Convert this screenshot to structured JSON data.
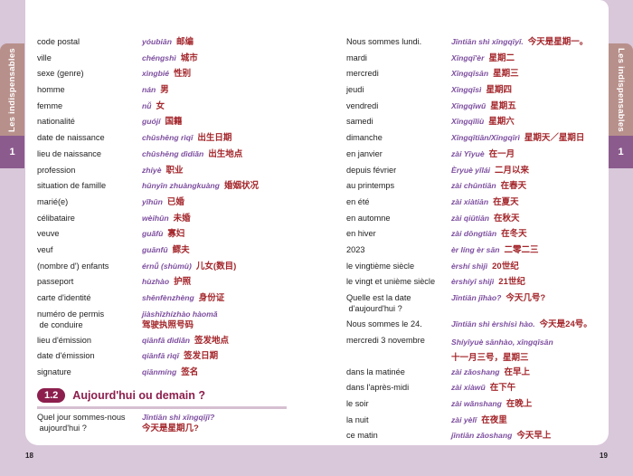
{
  "tab": {
    "label": "Les indispensables",
    "chapter": "1"
  },
  "left": {
    "rows": [
      {
        "fr": "code postal",
        "py": "yóubiān",
        "hz": "邮编"
      },
      {
        "fr": "ville",
        "py": "chéngshì",
        "hz": "城市"
      },
      {
        "fr": "sexe (genre)",
        "py": "xìngbié",
        "hz": "性别"
      },
      {
        "fr": "homme",
        "py": "nán",
        "hz": "男"
      },
      {
        "fr": "femme",
        "py": "nǚ",
        "hz": "女"
      },
      {
        "fr": "nationalité",
        "py": "guójí",
        "hz": "国籍"
      },
      {
        "fr": "date de naissance",
        "py": "chūshēng rìqī",
        "hz": "出生日期"
      },
      {
        "fr": "lieu de naissance",
        "py": "chūshēng dìdiǎn",
        "hz": "出生地点"
      },
      {
        "fr": "profession",
        "py": "zhíyè",
        "hz": "职业"
      },
      {
        "fr": "situation de famille",
        "py": "hūnyīn zhuàngkuàng",
        "hz": "婚姻状况"
      },
      {
        "fr": "marié(e)",
        "py": "yǐhūn",
        "hz": "已婚"
      },
      {
        "fr": "célibataire",
        "py": "wèihūn",
        "hz": "未婚"
      },
      {
        "fr": "veuve",
        "py": "guǎfù",
        "hz": "寡妇"
      },
      {
        "fr": "veuf",
        "py": "guānfū",
        "hz": "鳏夫"
      },
      {
        "fr": "(nombre d') enfants",
        "py": "érnǚ (shùmù)",
        "hz": "儿女(数目)"
      },
      {
        "fr": "passeport",
        "py": "hùzhào",
        "hz": "护照"
      },
      {
        "fr": "carte d'identité",
        "py": "shēnfènzhèng",
        "hz": "身份证"
      },
      {
        "fr": "numéro de permis\n de conduire",
        "py": "jiàshǐzhízhào hàomǎ",
        "hz": "驾驶执照号码",
        "tall": true,
        "stack": true
      },
      {
        "fr": "lieu d'émission",
        "py": "qiānfā dìdiǎn",
        "hz": "签发地点"
      },
      {
        "fr": "date d'émission",
        "py": "qiānfā rìqī",
        "hz": "签发日期"
      },
      {
        "fr": "signature",
        "py": "qiānmíng",
        "hz": "签名"
      }
    ],
    "section": {
      "number": "1.2",
      "title": "Aujourd'hui ou demain ?"
    },
    "rows2": [
      {
        "fr": "Quel jour sommes-nous\n aujourd'hui ?",
        "py": "Jīntiān shì xīngqījǐ?",
        "hz": "今天是星期几?",
        "tall": true,
        "stack": true
      }
    ],
    "page_number": "18"
  },
  "right": {
    "rows": [
      {
        "fr": "Nous sommes lundi.",
        "py": "Jīntiān shì xīngqīyī.",
        "hz": "今天是星期一。"
      },
      {
        "fr": "mardi",
        "py": "Xīngqī'èr",
        "hz": "星期二"
      },
      {
        "fr": "mercredi",
        "py": "Xīngqīsān",
        "hz": "星期三"
      },
      {
        "fr": "jeudi",
        "py": "Xīngqīsì",
        "hz": "星期四"
      },
      {
        "fr": "vendredi",
        "py": "Xīngqīwǔ",
        "hz": "星期五"
      },
      {
        "fr": "samedi",
        "py": "Xīngqīliù",
        "hz": "星期六"
      },
      {
        "fr": "dimanche",
        "py": "Xīngqītiān/Xīngqīrì",
        "hz": "星期天／星期日"
      },
      {
        "fr": "en janvier",
        "py": "zài Yīyuè",
        "hz": "在一月"
      },
      {
        "fr": "depuis février",
        "py": "Èryuè yǐlái",
        "hz": "二月以来"
      },
      {
        "fr": "au printemps",
        "py": "zài chūntiān",
        "hz": "在春天"
      },
      {
        "fr": "en été",
        "py": "zài xiàtiān",
        "hz": "在夏天"
      },
      {
        "fr": "en automne",
        "py": "zài qiūtiān",
        "hz": "在秋天"
      },
      {
        "fr": "en hiver",
        "py": "zài dōngtiān",
        "hz": "在冬天"
      },
      {
        "fr": "2023",
        "py": "èr líng èr sān",
        "hz": "二零二三"
      },
      {
        "fr": "le vingtième siècle",
        "py": "èrshí shìjì",
        "hz": "20世纪"
      },
      {
        "fr": "le vingt et unième siècle",
        "py": "èrshíyī shìjì",
        "hz": "21世纪"
      },
      {
        "fr": "Quelle est la date\n d'aujourd'hui ?",
        "py": "Jīntiān jǐhào?",
        "hz": "今天几号?",
        "tall": true
      },
      {
        "fr": "Nous sommes le 24.",
        "py": "Jīntiān shì èrshísì hào.",
        "hz": "今天是24号。"
      },
      {
        "fr": "mercredi 3 novembre",
        "py": "Shíyīyuè sānhào, xīngqīsān",
        "hz": "十一月三号，星期三",
        "tall": true,
        "stack": true
      },
      {
        "fr": "dans la matinée",
        "py": "zài zǎoshang",
        "hz": "在早上"
      },
      {
        "fr": "dans l'après-midi",
        "py": "zài xiàwǔ",
        "hz": "在下午"
      },
      {
        "fr": "le soir",
        "py": "zài wǎnshang",
        "hz": "在晚上"
      },
      {
        "fr": "la nuit",
        "py": "zài yèlǐ",
        "hz": "在夜里"
      },
      {
        "fr": "ce matin",
        "py": "jīntiān zǎoshang",
        "hz": "今天早上"
      }
    ],
    "page_number": "19"
  },
  "colors": {
    "pinyin": "#7d4e9f",
    "hanzi": "#a3262b",
    "section": "#8c1f4d",
    "tab": "#b8908b",
    "chapter": "#8c5b8e",
    "background": "#d9c7da"
  }
}
